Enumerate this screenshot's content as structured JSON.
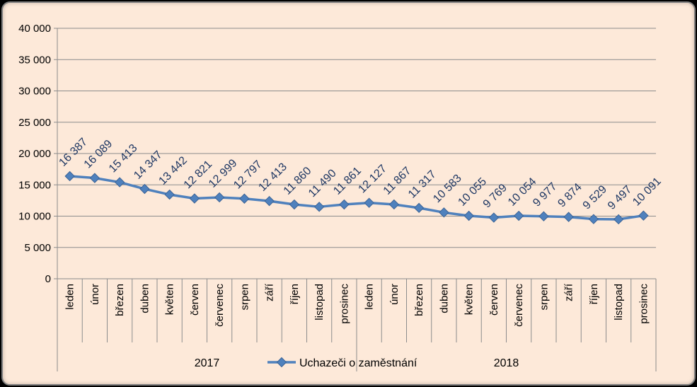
{
  "chart_data": {
    "type": "line",
    "ylim": [
      0,
      40000
    ],
    "yticks": [
      "0",
      "5 000",
      "10 000",
      "15 000",
      "20 000",
      "25 000",
      "30 000",
      "35 000",
      "40 000"
    ],
    "categories": [
      "leden",
      "únor",
      "březen",
      "duben",
      "květen",
      "červen",
      "červenec",
      "srpen",
      "září",
      "říjen",
      "listopad",
      "prosinec",
      "leden",
      "únor",
      "březen",
      "duben",
      "květen",
      "červen",
      "červenec",
      "srpen",
      "září",
      "říjen",
      "listopad",
      "prosinec"
    ],
    "years": [
      "2017",
      "2018"
    ],
    "grid": true,
    "legend_position": "bottom",
    "series": [
      {
        "name": "Uchazeči o zaměstnání",
        "color": "#4f81bd",
        "values": [
          16387,
          16089,
          15413,
          14347,
          13442,
          12821,
          12999,
          12797,
          12413,
          11860,
          11490,
          11861,
          12127,
          11867,
          11317,
          10583,
          10055,
          9769,
          10054,
          9977,
          9874,
          9529,
          9497,
          10091
        ],
        "labels": [
          "16 387",
          "16 089",
          "15 413",
          "14 347",
          "13 442",
          "12 821",
          "12 999",
          "12 797",
          "12 413",
          "11 860",
          "11 490",
          "11 861",
          "12 127",
          "11 867",
          "11 317",
          "10 583",
          "10 055",
          "9 769",
          "10 054",
          "9 977",
          "9 874",
          "9 529",
          "9 497",
          "10 091"
        ]
      }
    ]
  }
}
